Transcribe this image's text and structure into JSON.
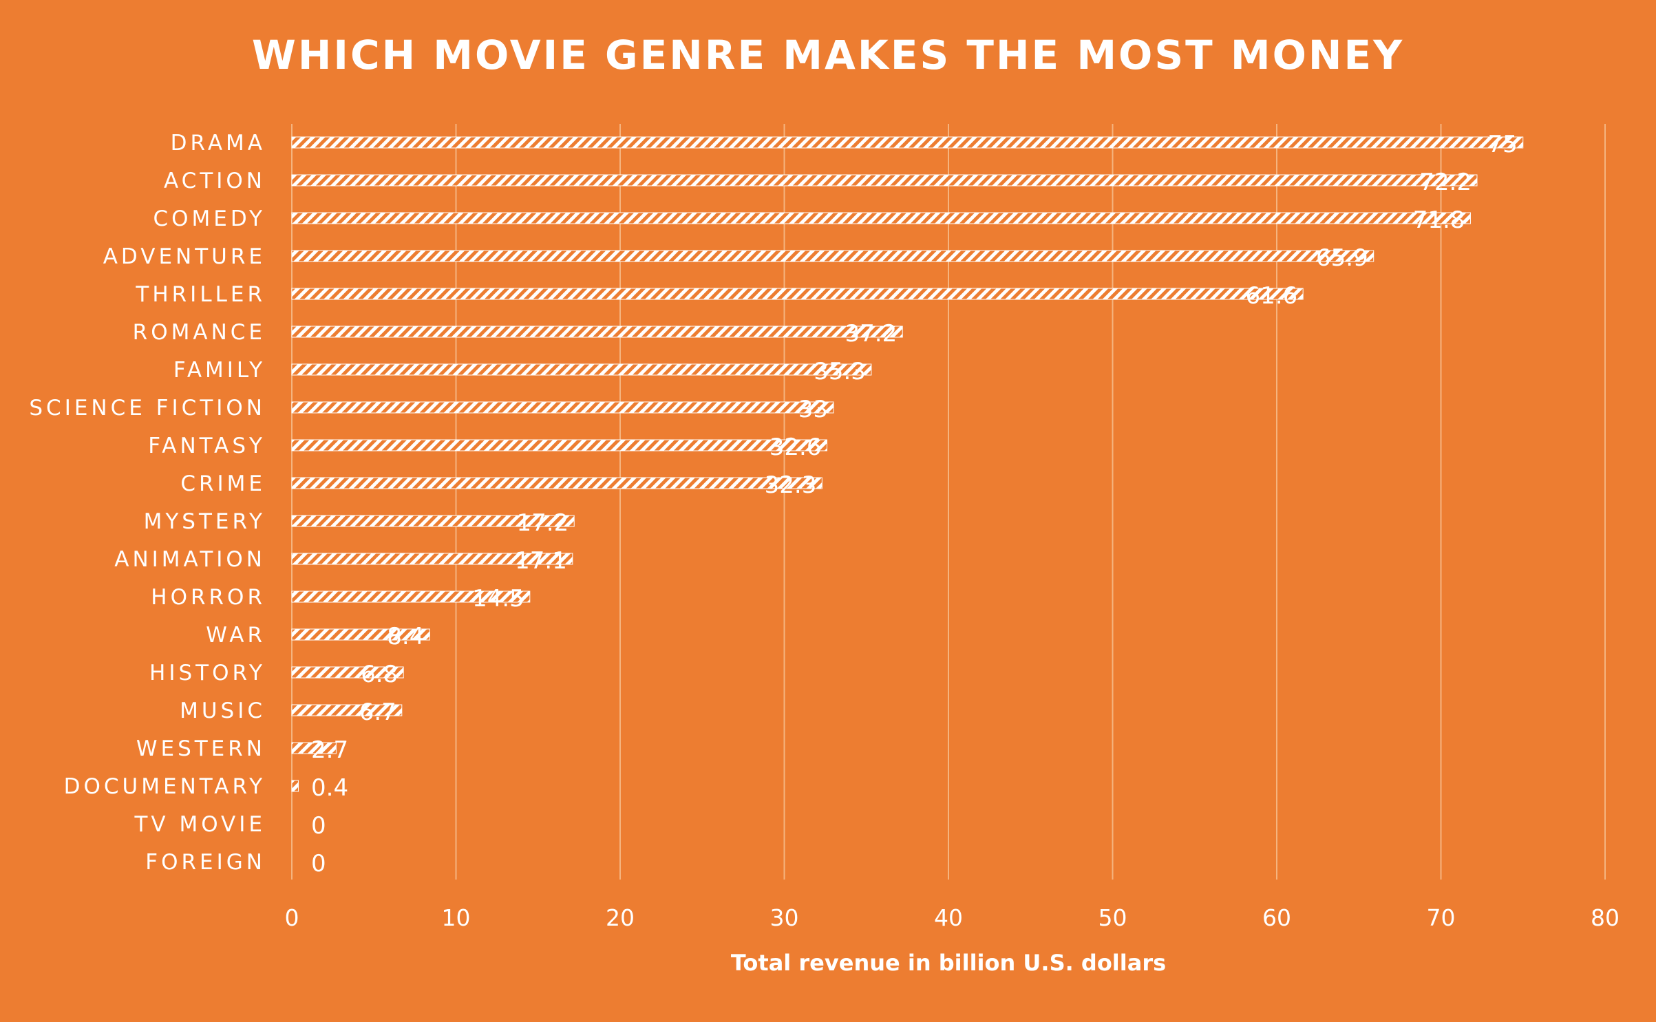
{
  "colors": {
    "background": "#ED7D31",
    "bar_pattern": "#FFFFFF",
    "gridline": "#F5B47F",
    "text": "#FFFFFF"
  },
  "chart_data": {
    "type": "bar",
    "orientation": "horizontal",
    "title": "WHICH MOVIE GENRE MAKES THE MOST MONEY",
    "xlabel": "Total revenue in billion U.S. dollars",
    "ylabel": "",
    "xlim": [
      0,
      80
    ],
    "xticks": [
      0,
      10,
      20,
      30,
      40,
      50,
      60,
      70,
      80
    ],
    "grid": "vertical",
    "legend": "none",
    "bar_fill": "diagonal-hatch",
    "categories": [
      "DRAMA",
      "ACTION",
      "COMEDY",
      "ADVENTURE",
      "THRILLER",
      "ROMANCE",
      "FAMILY",
      "SCIENCE FICTION",
      "FANTASY",
      "CRIME",
      "MYSTERY",
      "ANIMATION",
      "HORROR",
      "WAR",
      "HISTORY",
      "MUSIC",
      "WESTERN",
      "DOCUMENTARY",
      "TV MOVIE",
      "FOREIGN"
    ],
    "values": [
      75,
      72.2,
      71.8,
      65.9,
      61.6,
      37.2,
      35.3,
      33,
      32.6,
      32.3,
      17.2,
      17.1,
      14.5,
      8.4,
      6.8,
      6.7,
      2.7,
      0.4,
      0,
      0
    ],
    "data_labels": [
      "75",
      "72.2",
      "71.8",
      "65.9",
      "61.6",
      "37.2",
      "35.3",
      "33",
      "32.6",
      "32.3",
      "17.2",
      "17.1",
      "14.5",
      "8.4",
      "6.8",
      "6.7",
      "2.7",
      "0.4",
      "0",
      "0"
    ]
  }
}
